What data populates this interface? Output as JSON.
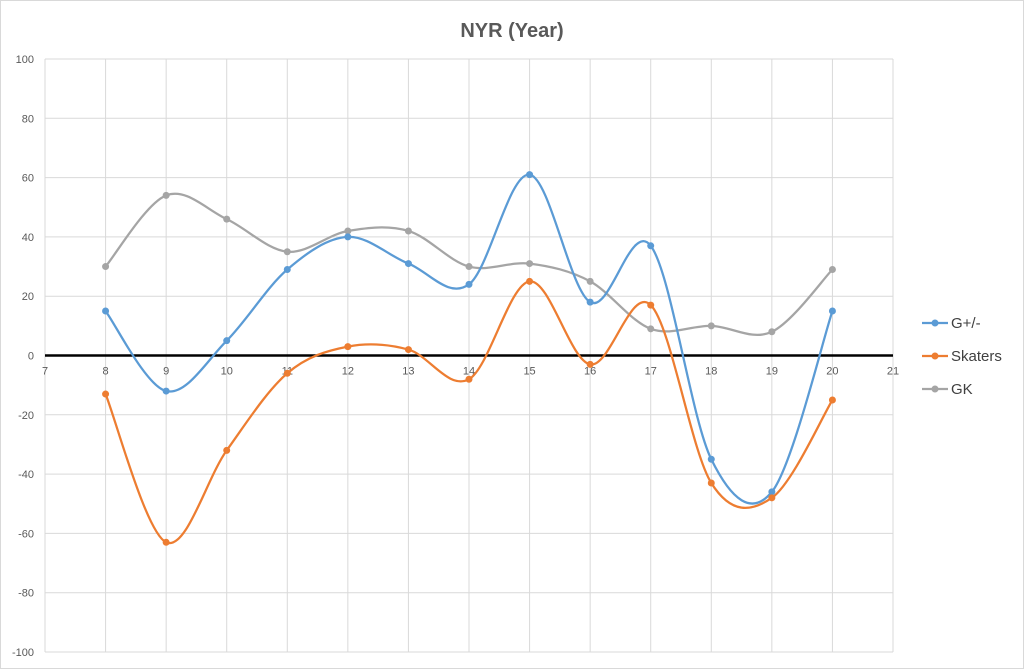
{
  "chart_data": {
    "type": "line",
    "title": "NYR (Year)",
    "xlabel": "",
    "ylabel": "",
    "xlim": [
      7,
      21
    ],
    "ylim": [
      -100,
      100
    ],
    "x_ticks": [
      7,
      8,
      9,
      10,
      11,
      12,
      13,
      14,
      15,
      16,
      17,
      18,
      19,
      20,
      21
    ],
    "y_ticks": [
      -100,
      -80,
      -60,
      -40,
      -20,
      0,
      20,
      40,
      60,
      80,
      100
    ],
    "grid": true,
    "smooth": true,
    "legend_position": "right",
    "x": [
      8,
      9,
      10,
      11,
      12,
      13,
      14,
      15,
      16,
      17,
      18,
      19,
      20
    ],
    "series": [
      {
        "name": "G+/-",
        "color": "#5b9bd5",
        "values": [
          15,
          -12,
          5,
          29,
          40,
          31,
          24,
          61,
          18,
          37,
          -35,
          -46,
          15
        ]
      },
      {
        "name": "Skaters",
        "color": "#ed7d31",
        "values": [
          -13,
          -63,
          -32,
          -6,
          3,
          2,
          -8,
          25,
          -3,
          17,
          -43,
          -48,
          -15
        ]
      },
      {
        "name": "GK",
        "color": "#a5a5a5",
        "values": [
          30,
          54,
          46,
          35,
          42,
          42,
          30,
          31,
          25,
          9,
          10,
          8,
          29
        ]
      }
    ]
  }
}
